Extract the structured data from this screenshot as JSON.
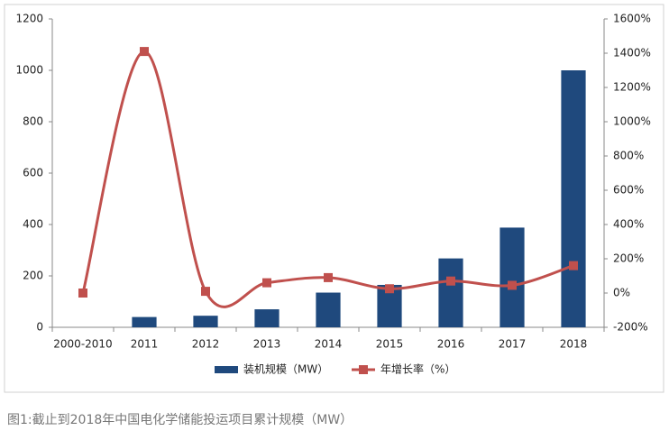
{
  "chart_data": {
    "type": "bar-line",
    "categories": [
      "2000-2010",
      "2011",
      "2012",
      "2013",
      "2014",
      "2015",
      "2016",
      "2017",
      "2018"
    ],
    "series": [
      {
        "name": "装机规模（MW）",
        "type": "bar",
        "color": "#1f497d",
        "values": [
          0,
          40,
          45,
          70,
          135,
          165,
          268,
          388,
          1000
        ]
      },
      {
        "name": "年增长率（%）",
        "type": "line",
        "axis": "y2",
        "color": "#c0504d",
        "values": [
          0,
          1410,
          10,
          60,
          90,
          25,
          70,
          45,
          160
        ]
      }
    ],
    "ylim": [
      0,
      1200
    ],
    "yticks": [
      0,
      200,
      400,
      600,
      800,
      1000,
      1200
    ],
    "y2lim": [
      -200,
      1600
    ],
    "y2ticks": [
      {
        "value": -200,
        "label": "-200%"
      },
      {
        "value": 0,
        "label": "0%"
      },
      {
        "value": 200,
        "label": "200%"
      },
      {
        "value": 400,
        "label": "400%"
      },
      {
        "value": 600,
        "label": "600%"
      },
      {
        "value": 800,
        "label": "800%"
      },
      {
        "value": 1000,
        "label": "1000%"
      },
      {
        "value": 1200,
        "label": "1200%"
      },
      {
        "value": 1400,
        "label": "1400%"
      },
      {
        "value": 1600,
        "label": "1600%"
      }
    ],
    "legend": "bottom",
    "caption": "图1:截止到2018年中国电化学储能投运项目累计规模（MW）"
  }
}
